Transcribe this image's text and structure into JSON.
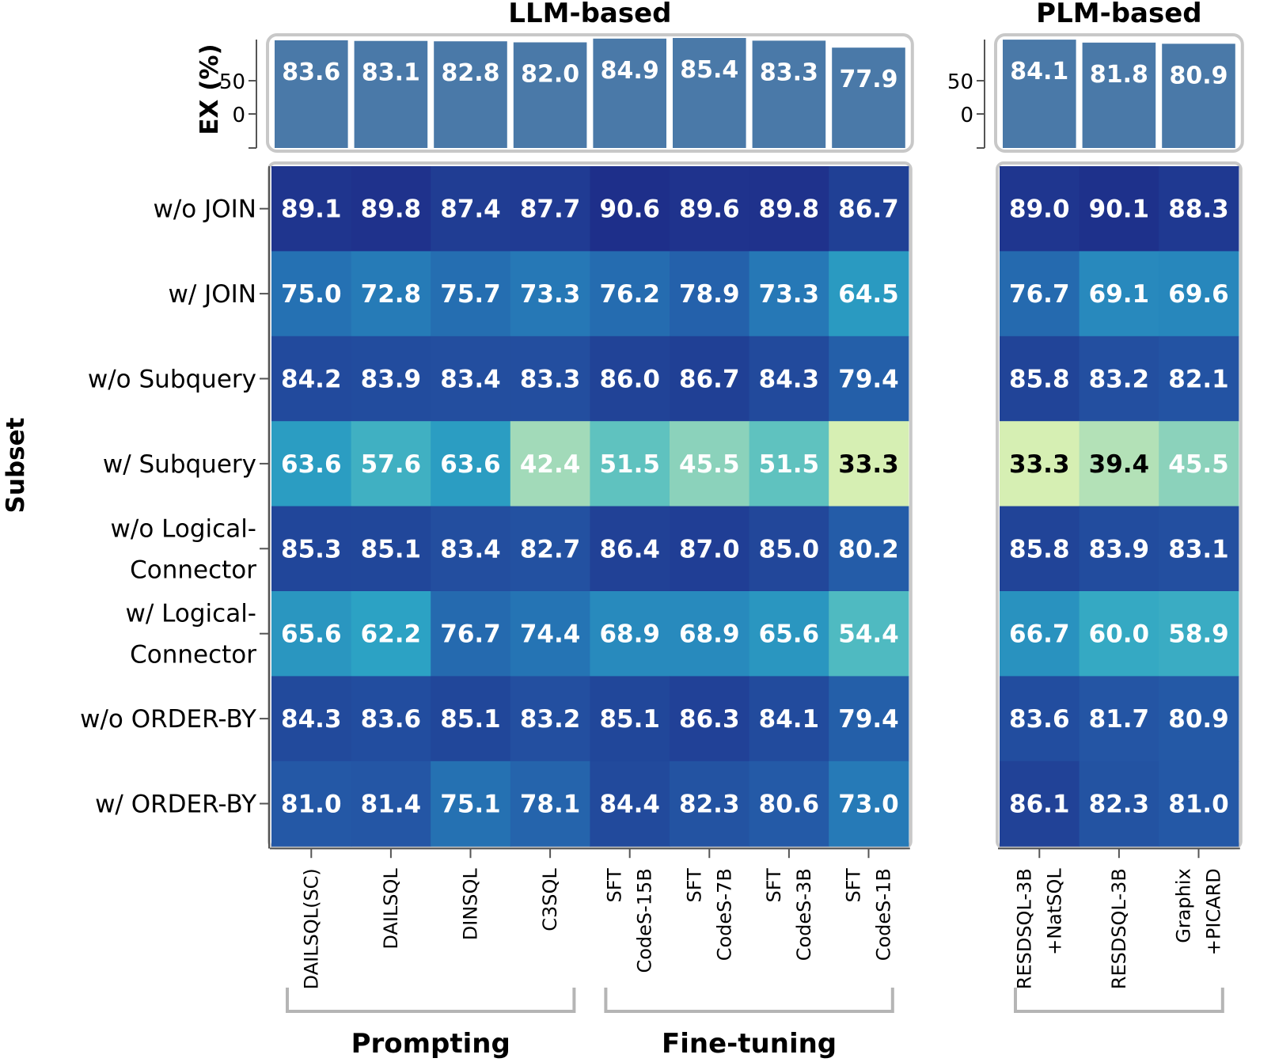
{
  "chart_data": {
    "type": "heatmap",
    "x_title": "",
    "y_title": "Subset",
    "bar_axis_title": "EX (%)",
    "bar_ticks": [
      "50",
      "0"
    ],
    "groups": [
      {
        "name": "LLM-based",
        "columns": [
          0,
          1,
          2,
          3,
          4,
          5,
          6,
          7
        ]
      },
      {
        "name": "PLM-based",
        "columns": [
          8,
          9,
          10
        ]
      }
    ],
    "brackets": [
      {
        "name": "Prompting",
        "columns": [
          0,
          3
        ]
      },
      {
        "name": "Fine-tuning",
        "columns": [
          4,
          7
        ]
      }
    ],
    "columns": [
      {
        "lines": [
          "DAILSQL(SC)"
        ]
      },
      {
        "lines": [
          "DAILSQL"
        ]
      },
      {
        "lines": [
          "DINSQL"
        ]
      },
      {
        "lines": [
          "C3SQL"
        ]
      },
      {
        "lines": [
          "SFT",
          "CodeS-15B"
        ]
      },
      {
        "lines": [
          "SFT",
          "CodeS-7B"
        ]
      },
      {
        "lines": [
          "SFT",
          "CodeS-3B"
        ]
      },
      {
        "lines": [
          "SFT",
          "CodeS-1B"
        ]
      },
      {
        "lines": [
          "RESDSQL-3B",
          "+NatSQL"
        ]
      },
      {
        "lines": [
          "RESDSQL-3B"
        ]
      },
      {
        "lines": [
          "Graphix",
          "+PICARD"
        ]
      }
    ],
    "overall_ex": [
      83.6,
      83.1,
      82.8,
      82.0,
      84.9,
      85.4,
      83.3,
      77.9,
      84.1,
      81.8,
      80.9
    ],
    "overall_ex_labels": [
      "83.6",
      "83.1",
      "82.8",
      "82.0",
      "84.9",
      "85.4",
      "83.3",
      "77.9",
      "84.1",
      "81.8",
      "80.9"
    ],
    "rows": [
      {
        "lines": [
          "w/o JOIN"
        ]
      },
      {
        "lines": [
          "w/ JOIN"
        ]
      },
      {
        "lines": [
          "w/o Subquery"
        ]
      },
      {
        "lines": [
          "w/ Subquery"
        ]
      },
      {
        "lines": [
          "w/o Logical-",
          "Connector"
        ]
      },
      {
        "lines": [
          "w/ Logical-",
          "Connector"
        ]
      },
      {
        "lines": [
          "w/o ORDER-BY"
        ]
      },
      {
        "lines": [
          "w/ ORDER-BY"
        ]
      }
    ],
    "values": [
      [
        89.1,
        89.8,
        87.4,
        87.7,
        90.6,
        89.6,
        89.8,
        86.7,
        89.0,
        90.1,
        88.3
      ],
      [
        75.0,
        72.8,
        75.7,
        73.3,
        76.2,
        78.9,
        73.3,
        64.5,
        76.7,
        69.1,
        69.6
      ],
      [
        84.2,
        83.9,
        83.4,
        83.3,
        86.0,
        86.7,
        84.3,
        79.4,
        85.8,
        83.2,
        82.1
      ],
      [
        63.6,
        57.6,
        63.6,
        42.4,
        51.5,
        45.5,
        51.5,
        33.3,
        33.3,
        39.4,
        45.5
      ],
      [
        85.3,
        85.1,
        83.4,
        82.7,
        86.4,
        87.0,
        85.0,
        80.2,
        85.8,
        83.9,
        83.1
      ],
      [
        65.6,
        62.2,
        76.7,
        74.4,
        68.9,
        68.9,
        65.6,
        54.4,
        66.7,
        60.0,
        58.9
      ],
      [
        84.3,
        83.6,
        85.1,
        83.2,
        85.1,
        86.3,
        84.1,
        79.4,
        83.6,
        81.7,
        80.9
      ],
      [
        81.0,
        81.4,
        75.1,
        78.1,
        84.4,
        82.3,
        80.6,
        73.0,
        86.1,
        82.3,
        81.0
      ]
    ],
    "value_labels": [
      [
        "89.1",
        "89.8",
        "87.4",
        "87.7",
        "90.6",
        "89.6",
        "89.8",
        "86.7",
        "89.0",
        "90.1",
        "88.3"
      ],
      [
        "75.0",
        "72.8",
        "75.7",
        "73.3",
        "76.2",
        "78.9",
        "73.3",
        "64.5",
        "76.7",
        "69.1",
        "69.6"
      ],
      [
        "84.2",
        "83.9",
        "83.4",
        "83.3",
        "86.0",
        "86.7",
        "84.3",
        "79.4",
        "85.8",
        "83.2",
        "82.1"
      ],
      [
        "63.6",
        "57.6",
        "63.6",
        "42.4",
        "51.5",
        "45.5",
        "51.5",
        "33.3",
        "33.3",
        "39.4",
        "45.5"
      ],
      [
        "85.3",
        "85.1",
        "83.4",
        "82.7",
        "86.4",
        "87.0",
        "85.0",
        "80.2",
        "85.8",
        "83.9",
        "83.1"
      ],
      [
        "65.6",
        "62.2",
        "76.7",
        "74.4",
        "68.9",
        "68.9",
        "65.6",
        "54.4",
        "66.7",
        "60.0",
        "58.9"
      ],
      [
        "84.3",
        "83.6",
        "85.1",
        "83.2",
        "85.1",
        "86.3",
        "84.1",
        "79.4",
        "83.6",
        "81.7",
        "80.9"
      ],
      [
        "81.0",
        "81.4",
        "75.1",
        "78.1",
        "84.4",
        "82.3",
        "80.6",
        "73.0",
        "86.1",
        "82.3",
        "81.0"
      ]
    ],
    "color_scale": {
      "domain": [
        33.3,
        90.6
      ],
      "stops": [
        "#d6efb3",
        "#9fd9b9",
        "#58c0c0",
        "#2ca3c4",
        "#2680ba",
        "#2458a6",
        "#1e2f8a"
      ]
    },
    "bar_color": "#4a79a8",
    "dark_text_color": "#000000",
    "light_text_color": "#ffffff",
    "grid": false
  }
}
